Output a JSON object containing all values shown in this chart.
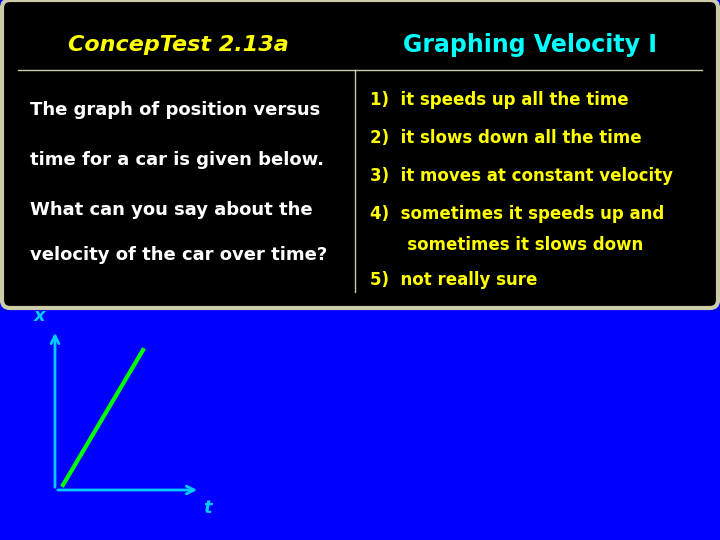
{
  "bg_color": "#0000FF",
  "card_bg": "#000000",
  "card_border": "#CCCCAA",
  "title_left": "ConcepTest 2.13a",
  "title_left_color": "#FFFF00",
  "title_right": "Graphing Velocity I",
  "title_right_color": "#00FFFF",
  "question_lines": [
    "The graph of position versus",
    "time for a car is given below.",
    "What can you say about the",
    "velocity of the car over time?"
  ],
  "question_color": "#FFFFFF",
  "answers": [
    [
      "1) ",
      "it speeds up all the time"
    ],
    [
      "2) ",
      "it slows down all the time"
    ],
    [
      "3) ",
      "it moves at constant velocity"
    ],
    [
      "4) ",
      "sometimes it speeds up and"
    ],
    [
      "    ",
      "   sometimes it slows down"
    ],
    [
      "5) ",
      "not really sure"
    ]
  ],
  "answer_color": "#FFFF00",
  "axis_color": "#00CCFF",
  "line_color": "#00FF00",
  "axis_label_x": "x",
  "axis_label_t": "t"
}
